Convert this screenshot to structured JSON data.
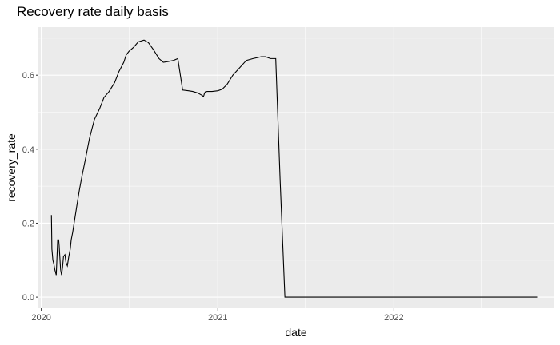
{
  "chart_data": {
    "type": "line",
    "title": "Recovery rate daily basis",
    "xlabel": "date",
    "ylabel": "recovery_rate",
    "x_axis_type": "date",
    "xlim": [
      "2019-12-26",
      "2022-11-28"
    ],
    "ylim": [
      -0.03,
      0.73
    ],
    "x_ticks": [
      {
        "date": "2020-01-01",
        "label": "2020"
      },
      {
        "date": "2021-01-01",
        "label": "2021"
      },
      {
        "date": "2022-01-01",
        "label": "2022"
      }
    ],
    "x_minor_ticks": [
      "2020-07-01",
      "2021-07-01",
      "2022-07-01"
    ],
    "y_ticks": [
      0.0,
      0.2,
      0.4,
      0.6
    ],
    "y_tick_labels": [
      "0.0",
      "0.2",
      "0.4",
      "0.6"
    ],
    "y_minor_ticks": [
      0.1,
      0.3,
      0.5,
      0.7
    ],
    "grid": true,
    "panel_background": "#ebebeb",
    "grid_color": "#ffffff",
    "line_color": "#000000",
    "series": [
      {
        "x": [
          "2020-01-22",
          "2020-01-23",
          "2020-01-24",
          "2020-01-25",
          "2020-01-27",
          "2020-01-29",
          "2020-02-01",
          "2020-02-04",
          "2020-02-06",
          "2020-02-07",
          "2020-02-10",
          "2020-02-12",
          "2020-02-14",
          "2020-02-16",
          "2020-02-19",
          "2020-02-21",
          "2020-02-24",
          "2020-02-27",
          "2020-03-01",
          "2020-03-03",
          "2020-03-06",
          "2020-03-09",
          "2020-03-12",
          "2020-03-15",
          "2020-03-20",
          "2020-03-25",
          "2020-04-01",
          "2020-04-10",
          "2020-04-20",
          "2020-05-01",
          "2020-05-10",
          "2020-05-20",
          "2020-06-01",
          "2020-06-10",
          "2020-06-20",
          "2020-06-25",
          "2020-07-01",
          "2020-07-10",
          "2020-07-20",
          "2020-08-01",
          "2020-08-10",
          "2020-08-20",
          "2020-09-01",
          "2020-09-10",
          "2020-09-20",
          "2020-10-01",
          "2020-10-10",
          "2020-10-20",
          "2020-11-01",
          "2020-11-10",
          "2020-11-20",
          "2020-11-30",
          "2020-12-02",
          "2020-12-03",
          "2020-12-04",
          "2020-12-06",
          "2020-12-10",
          "2020-12-20",
          "2021-01-01",
          "2021-01-10",
          "2021-01-20",
          "2021-02-01",
          "2021-02-15",
          "2021-03-01",
          "2021-03-15",
          "2021-04-01",
          "2021-04-10",
          "2021-04-20",
          "2021-05-01",
          "2021-05-10",
          "2021-05-20",
          "2021-06-01",
          "2021-06-10",
          "2021-06-20",
          "2021-07-01",
          "2021-07-10",
          "2021-07-20",
          "2021-07-25",
          "2021-07-29",
          "2021-07-30",
          "2021-08-01",
          "2021-08-05",
          "2021-10-01",
          "2022-01-01",
          "2022-06-01",
          "2022-10-25"
        ],
        "y": [
          0.222,
          0.13,
          0.115,
          0.1,
          0.09,
          0.075,
          0.06,
          0.155,
          0.155,
          0.14,
          0.075,
          0.06,
          0.08,
          0.11,
          0.115,
          0.095,
          0.085,
          0.11,
          0.13,
          0.155,
          0.175,
          0.2,
          0.225,
          0.25,
          0.29,
          0.325,
          0.37,
          0.43,
          0.48,
          0.51,
          0.54,
          0.555,
          0.58,
          0.61,
          0.635,
          0.655,
          0.665,
          0.675,
          0.69,
          0.695,
          0.688,
          0.67,
          0.645,
          0.635,
          0.637,
          0.64,
          0.645,
          0.56,
          0.558,
          0.556,
          0.552,
          0.545,
          0.542,
          0.545,
          0.55,
          0.555,
          0.556,
          0.556,
          0.558,
          0.562,
          0.575,
          0.6,
          0.62,
          0.64,
          0.645,
          0.65,
          0.65,
          0.645,
          0.645,
          0.32,
          0.0,
          0.0,
          0.0,
          0.0,
          0.0,
          0.0,
          0.0,
          0.0,
          0.0,
          0.0,
          0.0,
          0.0,
          0.0,
          0.0,
          0.0,
          0.0
        ]
      }
    ]
  }
}
